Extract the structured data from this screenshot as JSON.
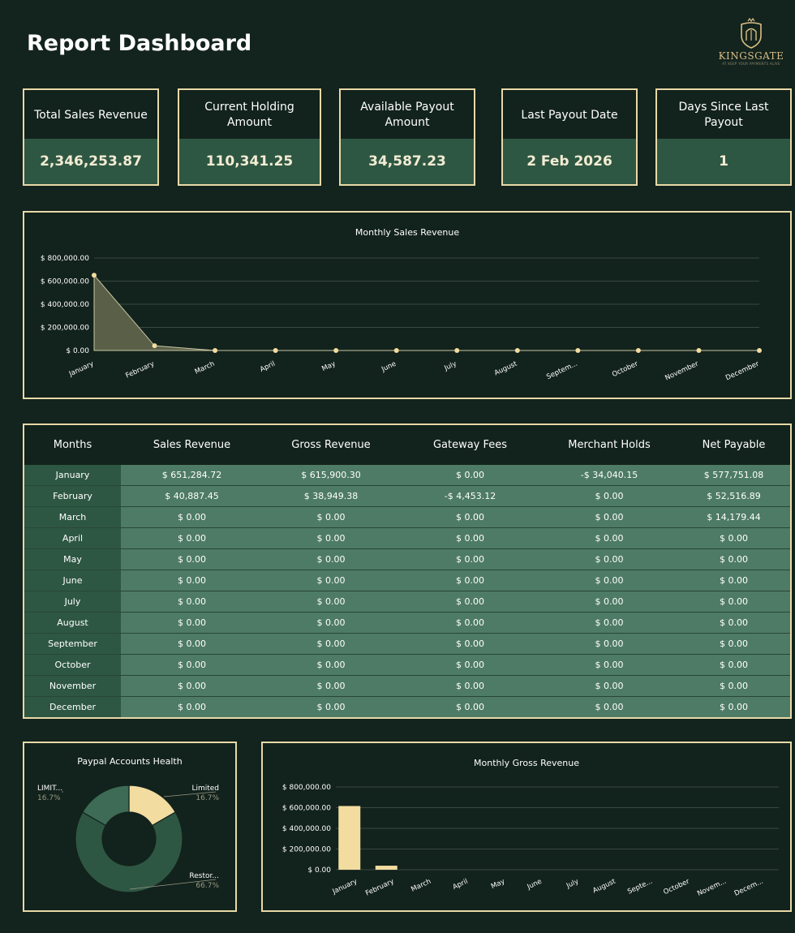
{
  "page_title": "Report Dashboard",
  "logo": {
    "brand": "KINGSGATE",
    "tagline": "AT KEEP YOUR PAYMENTS ALIVE"
  },
  "kpis": [
    {
      "label": "Total Sales Revenue",
      "value": "2,346,253.87"
    },
    {
      "label": "Current Holding Amount",
      "value": "110,341.25"
    },
    {
      "label": "Available Payout Amount",
      "value": "34,587.23"
    },
    {
      "label": "Last Payout Date",
      "value": "2 Feb 2026"
    },
    {
      "label": "Days Since Last Payout",
      "value": "1"
    }
  ],
  "table": {
    "headers": [
      "Months",
      "Sales Revenue",
      "Gross Revenue",
      "Gateway Fees",
      "Merchant Holds",
      "Net Payable"
    ],
    "rows": [
      [
        "January",
        "$ 651,284.72",
        "$ 615,900.30",
        "$ 0.00",
        "-$ 34,040.15",
        "$ 577,751.08"
      ],
      [
        "February",
        "$ 40,887.45",
        "$ 38,949.38",
        "-$ 4,453.12",
        "$ 0.00",
        "$ 52,516.89"
      ],
      [
        "March",
        "$ 0.00",
        "$ 0.00",
        "$ 0.00",
        "$ 0.00",
        "$ 14,179.44"
      ],
      [
        "April",
        "$ 0.00",
        "$ 0.00",
        "$ 0.00",
        "$ 0.00",
        "$ 0.00"
      ],
      [
        "May",
        "$ 0.00",
        "$ 0.00",
        "$ 0.00",
        "$ 0.00",
        "$ 0.00"
      ],
      [
        "June",
        "$ 0.00",
        "$ 0.00",
        "$ 0.00",
        "$ 0.00",
        "$ 0.00"
      ],
      [
        "July",
        "$ 0.00",
        "$ 0.00",
        "$ 0.00",
        "$ 0.00",
        "$ 0.00"
      ],
      [
        "August",
        "$ 0.00",
        "$ 0.00",
        "$ 0.00",
        "$ 0.00",
        "$ 0.00"
      ],
      [
        "September",
        "$ 0.00",
        "$ 0.00",
        "$ 0.00",
        "$ 0.00",
        "$ 0.00"
      ],
      [
        "October",
        "$ 0.00",
        "$ 0.00",
        "$ 0.00",
        "$ 0.00",
        "$ 0.00"
      ],
      [
        "November",
        "$ 0.00",
        "$ 0.00",
        "$ 0.00",
        "$ 0.00",
        "$ 0.00"
      ],
      [
        "December",
        "$ 0.00",
        "$ 0.00",
        "$ 0.00",
        "$ 0.00",
        "$ 0.00"
      ]
    ]
  },
  "colors": {
    "background": "#13231d",
    "border": "#e8d9a7",
    "accent_dark": "#2e5743",
    "accent_light": "#4e7b65",
    "cream": "#f2dca0"
  },
  "chart_data": [
    {
      "type": "area",
      "title": "Monthly Sales Revenue",
      "categories": [
        "January",
        "February",
        "March",
        "April",
        "May",
        "June",
        "July",
        "August",
        "Septem...",
        "October",
        "November",
        "December"
      ],
      "values": [
        651284.72,
        40887.45,
        0,
        0,
        0,
        0,
        0,
        0,
        0,
        0,
        0,
        0
      ],
      "y_ticks": [
        "$ 0.00",
        "$ 200,000.00",
        "$ 400,000.00",
        "$ 600,000.00",
        "$ 800,000.00"
      ],
      "ylim": [
        0,
        800000
      ],
      "grid": true
    },
    {
      "type": "pie",
      "title": "Paypal Accounts Health",
      "slices": [
        {
          "label": "Limited",
          "pct": "16.7%",
          "value": 16.7,
          "color": "#f2dca0"
        },
        {
          "label": "Restor...",
          "pct": "66.7%",
          "value": 66.7,
          "color": "#2e5743"
        },
        {
          "label": "LIMIT...",
          "pct": "16.7%",
          "value": 16.7,
          "color": "#3d6b55"
        }
      ]
    },
    {
      "type": "bar",
      "title": "Monthly Gross Revenue",
      "categories": [
        "January",
        "February",
        "March",
        "April",
        "May",
        "June",
        "July",
        "August",
        "Septe...",
        "October",
        "Novem...",
        "Decem..."
      ],
      "values": [
        615900.3,
        38949.38,
        0,
        0,
        0,
        0,
        0,
        0,
        0,
        0,
        0,
        0
      ],
      "y_ticks": [
        "$ 0.00",
        "$ 200,000.00",
        "$ 400,000.00",
        "$ 600,000.00",
        "$ 800,000.00"
      ],
      "ylim": [
        0,
        800000
      ],
      "grid": true
    }
  ]
}
